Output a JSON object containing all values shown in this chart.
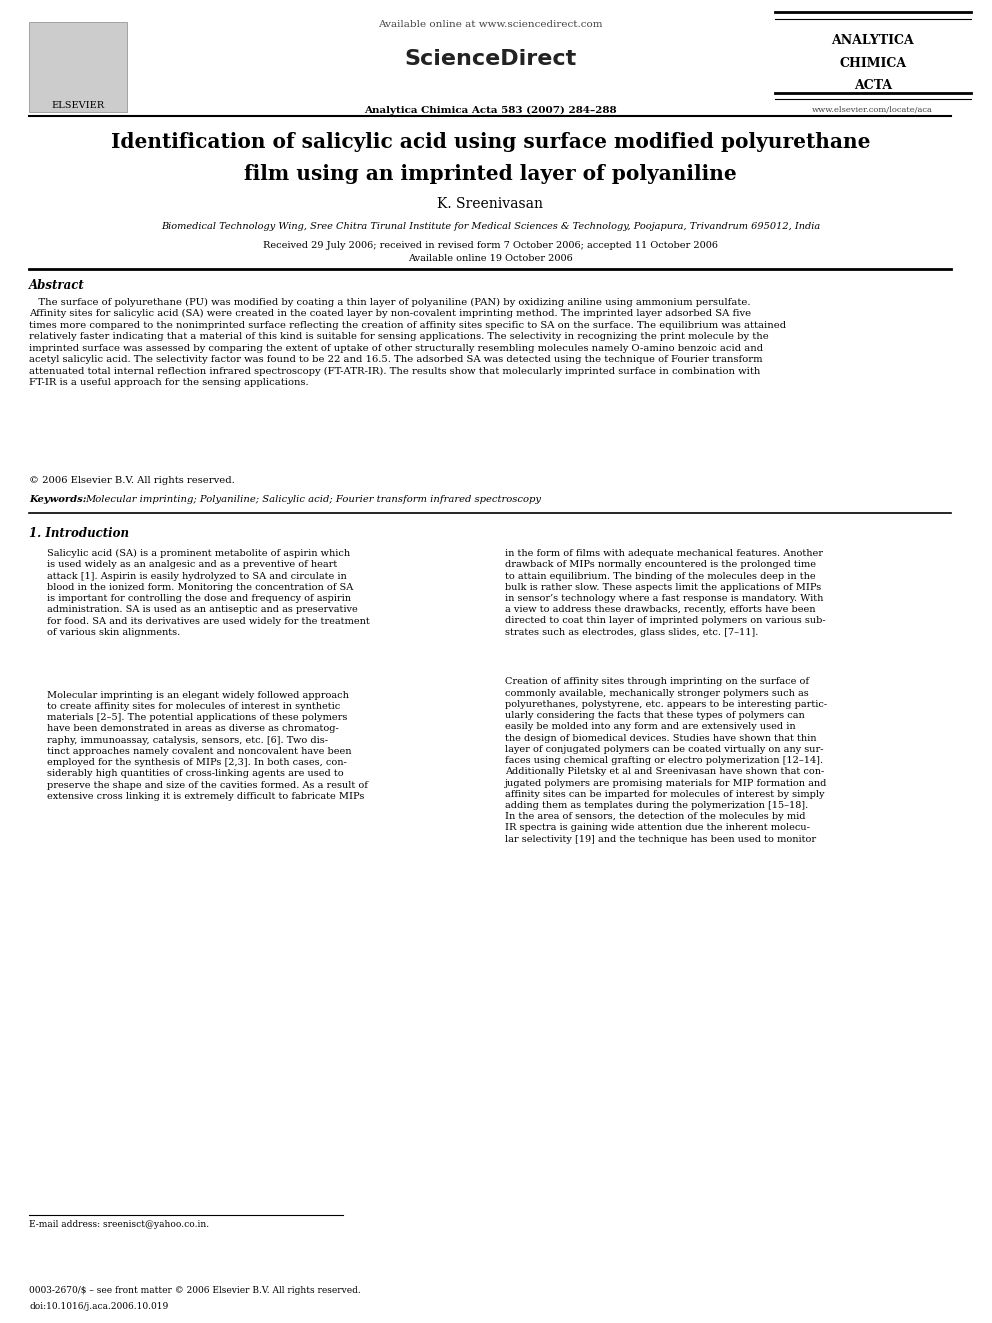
{
  "bg_color": "#ffffff",
  "elsevier_text": "ELSEVIER",
  "available_online_text": "Available online at www.sciencedirect.com",
  "sciencedirect_text": "ScienceDirect",
  "journal_name_line1": "ANALYTICA",
  "journal_name_line2": "CHIMICA",
  "journal_name_line3": "ACTA",
  "journal_ref": "Analytica Chimica Acta 583 (2007) 284–288",
  "journal_url": "www.elsevier.com/locate/aca",
  "title_line1": "Identification of salicylic acid using surface modified polyurethane",
  "title_line2": "film using an imprinted layer of polyaniline",
  "author": "K. Sreenivasan",
  "affiliation": "Biomedical Technology Wing, Sree Chitra Tirunal Institute for Medical Sciences & Technology, Poojapura, Trivandrum 695012, India",
  "received": "Received 29 July 2006; received in revised form 7 October 2006; accepted 11 October 2006",
  "available_online": "Available online 19 October 2006",
  "abstract_title": "Abstract",
  "abstract_text": "The surface of polyurethane (PU) was modified by coating a thin layer of polyaniline (PAN) by oxidizing aniline using ammonium persulfate. Affinity sites for salicylic acid (SA) were created in the coated layer by non-covalent imprinting method. The imprinted layer adsorbed SA five times more compared to the nonimprinted surface reflecting the creation of affinity sites specific to SA on the surface. The equilibrium was attained relatively faster indicating that a material of this kind is suitable for sensing applications. The selectivity in recognizing the print molecule by the imprinted surface was assessed by comparing the extent of uptake of other structurally resembling molecules namely O-amino benzoic acid and acetyl salicylic acid. The selectivity factor was found to be 22 and 16.5. The adsorbed SA was detected using the technique of Fourier transform attenuated total internal reflection infrared spectroscopy (FT-ATR-IR). The results show that molecularly imprinted surface in combination with FT-IR is a useful approach for the sensing applications.",
  "copyright": "© 2006 Elsevier B.V. All rights reserved.",
  "keywords_label": "Keywords:",
  "keywords_text": "Molecular imprinting; Polyaniline; Salicylic acid; Fourier transform infrared spectroscopy",
  "section1_title": "1. Introduction",
  "intro_col1_para1": "Salicylic acid (SA) is a prominent metabolite of aspirin which\nis used widely as an analgesic and as a preventive of heart\nattack [1]. Aspirin is easily hydrolyzed to SA and circulate in\nblood in the ionized form. Monitoring the concentration of SA\nis important for controlling the dose and frequency of aspirin\nadministration. SA is used as an antiseptic and as preservative\nfor food. SA and its derivatives are used widely for the treatment\nof various skin alignments.",
  "intro_col1_para2": "Molecular imprinting is an elegant widely followed approach\nto create affinity sites for molecules of interest in synthetic\nmaterials [2–5]. The potential applications of these polymers\nhave been demonstrated in areas as diverse as chromatog-\nraphy, immunoassay, catalysis, sensors, etc. [6]. Two dis-\ntinct approaches namely covalent and noncovalent have been\nemployed for the synthesis of MIPs [2,3]. In both cases, con-\nsiderably high quantities of cross-linking agents are used to\npreserve the shape and size of the cavities formed. As a result of\nextensive cross linking it is extremely difficult to fabricate MIPs",
  "intro_col2_para1": "in the form of films with adequate mechanical features. Another\ndrawback of MIPs normally encountered is the prolonged time\nto attain equilibrium. The binding of the molecules deep in the\nbulk is rather slow. These aspects limit the applications of MIPs\nin sensor’s technology where a fast response is mandatory. With\na view to address these drawbacks, recently, efforts have been\ndirected to coat thin layer of imprinted polymers on various sub-\nstrates such as electrodes, glass slides, etc. [7–11].",
  "intro_col2_para2": "Creation of affinity sites through imprinting on the surface of\ncommonly available, mechanically stronger polymers such as\npolyurethanes, polystyrene, etc. appears to be interesting partic-\nularly considering the facts that these types of polymers can\neasily be molded into any form and are extensively used in\nthe design of biomedical devices. Studies have shown that thin\nlayer of conjugated polymers can be coated virtually on any sur-\nfaces using chemical grafting or electro polymerization [12–14].\nAdditionally Piletsky et al and Sreenivasan have shown that con-\njugated polymers are promising materials for MIP formation and\naffinity sites can be imparted for molecules of interest by simply\nadding them as templates during the polymerization [15–18].\nIn the area of sensors, the detection of the molecules by mid\nIR spectra is gaining wide attention due the inherent molecu-\nlar selectivity [19] and the technique has been used to monitor",
  "footnote_email": "E-mail address: sreenisct@yahoo.co.in.",
  "footer_issn": "0003-2670/$ – see front matter © 2006 Elsevier B.V. All rights reserved.",
  "footer_doi": "doi:10.1016/j.aca.2006.10.019",
  "abstract_wrapped": "   The surface of polyurethane (PU) was modified by coating a thin layer of polyaniline (PAN) by oxidizing aniline using ammonium persulfate.\nAffinity sites for salicylic acid (SA) were created in the coated layer by non-covalent imprinting method. The imprinted layer adsorbed SA five\ntimes more compared to the nonimprinted surface reflecting the creation of affinity sites specific to SA on the surface. The equilibrium was attained\nrelatively faster indicating that a material of this kind is suitable for sensing applications. The selectivity in recognizing the print molecule by the\nimprinted surface was assessed by comparing the extent of uptake of other structurally resembling molecules namely O-amino benzoic acid and\nacetyl salicylic acid. The selectivity factor was found to be 22 and 16.5. The adsorbed SA was detected using the technique of Fourier transform\nattenuated total internal reflection infrared spectroscopy (FT-ATR-IR). The results show that molecularly imprinted surface in combination with\nFT-IR is a useful approach for the sensing applications."
}
